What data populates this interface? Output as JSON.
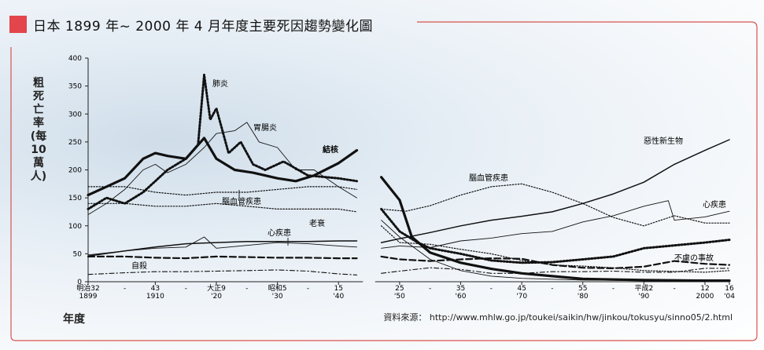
{
  "header": {
    "title": "日本 1899 年~ 2000 年 4 月年度主要死因趨勢變化圖"
  },
  "axes": {
    "ylabel": "粗死亡率(每10萬人)",
    "xlabel": "年度",
    "y_ticks": [
      "0",
      "50",
      "100",
      "150",
      "200",
      "250",
      "300",
      "350",
      "400"
    ],
    "x_ticks": [
      {
        "top": "明治32",
        "bottom": "1899"
      },
      {
        "top": "43",
        "bottom": "1910"
      },
      {
        "top": "大正9",
        "bottom": "'20"
      },
      {
        "top": "昭和5",
        "bottom": "'30"
      },
      {
        "top": "15",
        "bottom": "'40"
      },
      {
        "top": "25",
        "bottom": "'50"
      },
      {
        "top": "35",
        "bottom": "'60"
      },
      {
        "top": "45",
        "bottom": "'70"
      },
      {
        "top": "55",
        "bottom": "'80"
      },
      {
        "top": "平成2",
        "bottom": "'90"
      },
      {
        "top": "12",
        "bottom": "2000"
      },
      {
        "top": "16",
        "bottom": "'04"
      }
    ]
  },
  "source": {
    "text": "資料來源： http://www.mhlw.go.jp/toukei/saikin/hw/jinkou/tokusyu/sinno05/2.html"
  },
  "colors": {
    "accent": "#e2454b",
    "frame": "#d9534f"
  },
  "labels": {
    "pneumonia": "肺炎",
    "gastro": "胃腸炎",
    "tb": "結核",
    "cerebro_left": "腦血管疾患",
    "senility": "老衰",
    "heart_left": "心疾患",
    "suicide": "自殺",
    "cancer": "惡性新生物",
    "cerebro_right": "腦血管疾患",
    "heart_right": "心疾患",
    "accident": "不慮の事故"
  },
  "chart_data": {
    "type": "line",
    "xlim": [
      1899,
      2004
    ],
    "ylim": [
      0,
      400
    ],
    "gap": [
      1944,
      1946
    ],
    "series": [
      {
        "name": "結核",
        "style": "thick",
        "x": [
          1899,
          1902,
          1905,
          1908,
          1910,
          1912,
          1915,
          1918,
          1920,
          1923,
          1926,
          1930,
          1933,
          1936,
          1940,
          1943,
          1947,
          1950,
          1952,
          1955,
          1960,
          1965,
          1970,
          1975,
          1980,
          1990,
          2000,
          2004
        ],
        "y": [
          155,
          170,
          185,
          220,
          230,
          225,
          220,
          257,
          220,
          200,
          195,
          185,
          180,
          190,
          212,
          235,
          187,
          146,
          80,
          52,
          34,
          23,
          15,
          10,
          5,
          3,
          2,
          2
        ]
      },
      {
        "name": "肺炎",
        "style": "dotted",
        "x": [
          1899,
          1902,
          1905,
          1908,
          1910,
          1912,
          1915,
          1917,
          1918,
          1919,
          1920,
          1922,
          1924,
          1926,
          1928,
          1931,
          1935,
          1940,
          1943,
          1947,
          1950,
          1953,
          1955,
          1960,
          1965,
          1970,
          1975,
          1980,
          1985,
          1990,
          1995,
          2000,
          2004
        ],
        "y": [
          130,
          150,
          140,
          160,
          180,
          200,
          220,
          245,
          370,
          290,
          310,
          230,
          250,
          210,
          200,
          215,
          190,
          185,
          180,
          130,
          90,
          70,
          60,
          50,
          38,
          34,
          35,
          40,
          45,
          60,
          65,
          70,
          75
        ]
      },
      {
        "name": "胃腸炎",
        "style": "thin",
        "x": [
          1899,
          1902,
          1905,
          1908,
          1910,
          1912,
          1915,
          1918,
          1920,
          1923,
          1925,
          1927,
          1930,
          1933,
          1936,
          1940,
          1943,
          1947,
          1950,
          1955,
          1960,
          1965,
          1970,
          1980,
          1990,
          2000
        ],
        "y": [
          120,
          140,
          165,
          200,
          210,
          195,
          210,
          240,
          265,
          270,
          285,
          250,
          240,
          200,
          200,
          170,
          150,
          110,
          80,
          40,
          20,
          10,
          6,
          3,
          2,
          1
        ]
      },
      {
        "name": "腦血管疾患",
        "style": "dotted-thin",
        "x": [
          1899,
          1905,
          1910,
          1915,
          1920,
          1925,
          1930,
          1935,
          1940,
          1943,
          1947,
          1951,
          1955,
          1960,
          1965,
          1970,
          1975,
          1980,
          1985,
          1990,
          1995,
          2000,
          2004
        ],
        "y": [
          170,
          170,
          160,
          155,
          160,
          160,
          165,
          170,
          170,
          165,
          130,
          126,
          136,
          155,
          170,
          175,
          160,
          140,
          115,
          100,
          118,
          105,
          105
        ]
      },
      {
        "name": "老衰",
        "style": "dotted-thin",
        "x": [
          1899,
          1905,
          1910,
          1915,
          1920,
          1925,
          1930,
          1935,
          1940,
          1943,
          1947,
          1950,
          1955,
          1960,
          1965,
          1970,
          1975,
          1980,
          1985,
          1990,
          2000,
          2004
        ],
        "y": [
          140,
          140,
          135,
          135,
          140,
          135,
          130,
          130,
          130,
          125,
          100,
          70,
          67,
          58,
          50,
          38,
          30,
          28,
          25,
          20,
          17,
          20
        ]
      },
      {
        "name": "心疾患",
        "style": "thin",
        "x": [
          1899,
          1905,
          1910,
          1915,
          1918,
          1920,
          1925,
          1930,
          1935,
          1940,
          1943,
          1947,
          1950,
          1955,
          1960,
          1965,
          1970,
          1975,
          1980,
          1985,
          1990,
          1994,
          1995,
          2000,
          2004
        ],
        "y": [
          48,
          55,
          60,
          62,
          80,
          60,
          65,
          70,
          68,
          64,
          62,
          60,
          64,
          61,
          73,
          78,
          86,
          90,
          107,
          118,
          135,
          145,
          110,
          116,
          126
        ]
      },
      {
        "name": "惡性新生物",
        "style": "medium",
        "x": [
          1899,
          1905,
          1910,
          1915,
          1920,
          1925,
          1930,
          1935,
          1940,
          1943,
          1947,
          1950,
          1955,
          1960,
          1965,
          1970,
          1975,
          1980,
          1985,
          1990,
          1995,
          2000,
          2004
        ],
        "y": [
          46,
          55,
          62,
          68,
          70,
          72,
          72,
          72,
          73,
          73,
          70,
          77,
          88,
          100,
          110,
          117,
          125,
          140,
          157,
          178,
          210,
          235,
          254
        ]
      },
      {
        "name": "不慮の事故",
        "style": "dashed",
        "x": [
          1899,
          1905,
          1910,
          1915,
          1920,
          1925,
          1930,
          1935,
          1940,
          1943,
          1947,
          1950,
          1955,
          1960,
          1965,
          1970,
          1975,
          1980,
          1985,
          1990,
          1995,
          2000,
          2004
        ],
        "y": [
          45,
          45,
          43,
          42,
          45,
          44,
          43,
          43,
          42,
          42,
          45,
          40,
          37,
          40,
          42,
          41,
          30,
          25,
          24,
          27,
          37,
          32,
          30
        ]
      },
      {
        "name": "自殺",
        "style": "dash-dot",
        "x": [
          1899,
          1905,
          1910,
          1915,
          1920,
          1925,
          1930,
          1935,
          1940,
          1943,
          1947,
          1950,
          1955,
          1960,
          1965,
          1970,
          1975,
          1980,
          1985,
          1990,
          1995,
          2000,
          2004
        ],
        "y": [
          13,
          16,
          18,
          18,
          19,
          20,
          21,
          19,
          14,
          12,
          15,
          19,
          25,
          22,
          15,
          15,
          18,
          18,
          19,
          17,
          17,
          24,
          24
        ]
      }
    ]
  }
}
